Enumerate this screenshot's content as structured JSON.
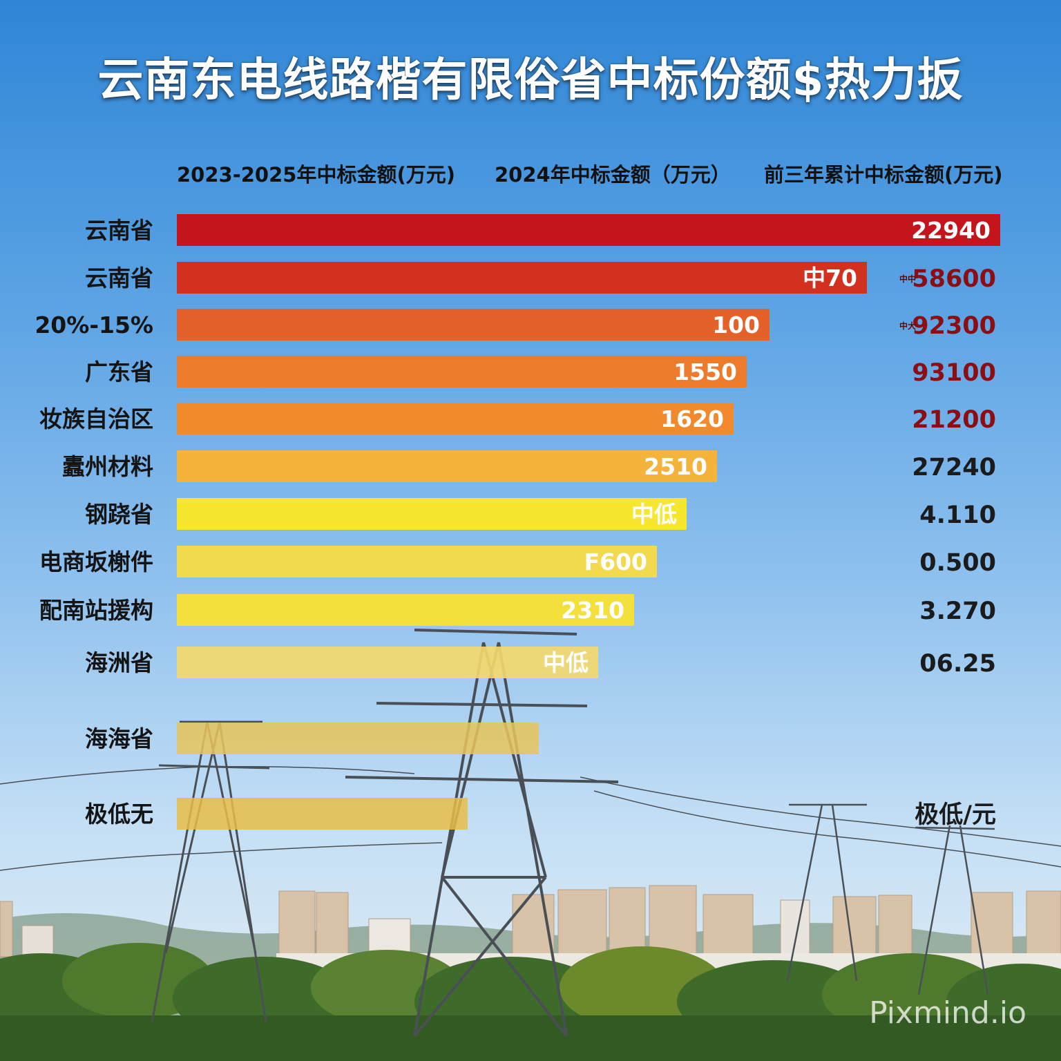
{
  "title": "云南东电线路楷有限俗省中标份额$热力扳",
  "column_headers": {
    "left": "2023-2025年中标金额(万元)",
    "middle": "2024年中标金额（万元）",
    "right": "前三年累计中标金额(万元)"
  },
  "watermark": "Pixmind.io",
  "colors": {
    "title": "#ffffff",
    "right_values_dark_red": "#8b0e12",
    "right_values_dark": "#1b1b1b"
  },
  "chart_data": {
    "type": "bar",
    "orientation": "horizontal",
    "categories": [
      "云南省",
      "云南省",
      "20%-15%",
      "广东省",
      "妆族自治区",
      "蠹州材料",
      "钢跷省",
      "电商坂榭件",
      "配南站援构",
      "海洲省",
      "海海省",
      "极低无"
    ],
    "bar_text": [
      "22940",
      "中70",
      "100",
      "1550",
      "1620",
      "2510",
      "中低",
      "F600",
      "2310",
      "中低",
      "",
      ""
    ],
    "right_text": [
      "",
      "58600",
      "92300",
      "93100",
      "21200",
      "27240",
      "4.110",
      "0.500",
      "3.270",
      "06.25",
      "",
      "极低/元"
    ],
    "right_text_small_prefix": [
      "",
      "中中",
      "中大",
      "",
      "",
      "",
      "",
      "",
      "",
      "",
      "",
      ""
    ],
    "values_relative": [
      1.0,
      0.838,
      0.72,
      0.692,
      0.676,
      0.656,
      0.619,
      0.583,
      0.555,
      0.512,
      0.44,
      0.353
    ],
    "bar_colors": [
      "#c4151c",
      "#d3311f",
      "#e4622a",
      "#ec7c2c",
      "#f08a2c",
      "#f4b43c",
      "#f6e62e",
      "#f3d94e",
      "#f4e03c",
      "#f5d96a",
      "#e8c45c",
      "#e8bd48"
    ],
    "bar_opacity": [
      1,
      1,
      1,
      1,
      1,
      1,
      1,
      1,
      1,
      0.9,
      0.85,
      0.85
    ],
    "right_text_colors": [
      "#8b0e12",
      "#8b0e12",
      "#8b0e12",
      "#8b0e12",
      "#8b0e12",
      "#1b1b1b",
      "#1b1b1b",
      "#1b1b1b",
      "#1b1b1b",
      "#1b1b1b",
      "#1b1b1b",
      "#1b1b1b"
    ],
    "grid": false,
    "legend": "none"
  }
}
